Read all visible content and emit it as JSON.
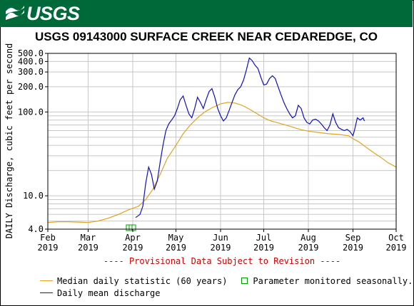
{
  "header": {
    "logo_text": "USGS",
    "logo_icon": "usgs-wave-logo",
    "brand_color": "#00693a"
  },
  "chart_data": {
    "type": "line",
    "title": "USGS 09143000 SURFACE CREEK NEAR CEDAREDGE, CO",
    "ylabel": "DAILY Discharge, cubic feet per second",
    "xlabel": "",
    "y_scale": "log",
    "ylim": [
      4.0,
      500.0
    ],
    "y_ticks": [
      {
        "value": 4.0,
        "label": "4.0"
      },
      {
        "value": 10.0,
        "label": "10.0"
      },
      {
        "value": 100.0,
        "label": "100.0"
      },
      {
        "value": 200.0,
        "label": "200.0"
      },
      {
        "value": 300.0,
        "label": "300.0"
      },
      {
        "value": 400.0,
        "label": "400.0"
      },
      {
        "value": 500.0,
        "label": "500.0"
      }
    ],
    "x_range": [
      "2019-02-01",
      "2019-10-01"
    ],
    "x_ticks": [
      {
        "date": "2019-02-01",
        "label": "Feb",
        "year": "2019"
      },
      {
        "date": "2019-03-01",
        "label": "Mar",
        "year": "2019"
      },
      {
        "date": "2019-04-01",
        "label": "Apr",
        "year": "2019"
      },
      {
        "date": "2019-05-01",
        "label": "May",
        "year": "2019"
      },
      {
        "date": "2019-06-01",
        "label": "Jun",
        "year": "2019"
      },
      {
        "date": "2019-07-01",
        "label": "Jul",
        "year": "2019"
      },
      {
        "date": "2019-08-01",
        "label": "Aug",
        "year": "2019"
      },
      {
        "date": "2019-09-01",
        "label": "Sep",
        "year": "2019"
      },
      {
        "date": "2019-10-01",
        "label": "Oct",
        "year": "2019"
      }
    ],
    "grid": true,
    "annotation": "---- Provisional Data Subject to Revision ----",
    "annotation_color": "#cc0000",
    "seasonal_markers": {
      "dates": [
        "2019-03-29",
        "2019-03-31",
        "2019-04-02"
      ],
      "value": 4.0,
      "color": "#00a000"
    },
    "series": [
      {
        "name": "Median daily statistic (60 years)",
        "color": "#e0a420",
        "points": [
          [
            "2019-02-01",
            4.8
          ],
          [
            "2019-02-08",
            4.9
          ],
          [
            "2019-02-15",
            4.9
          ],
          [
            "2019-02-22",
            4.85
          ],
          [
            "2019-03-01",
            4.8
          ],
          [
            "2019-03-08",
            5.0
          ],
          [
            "2019-03-15",
            5.4
          ],
          [
            "2019-03-22",
            6.0
          ],
          [
            "2019-03-29",
            6.8
          ],
          [
            "2019-04-05",
            7.5
          ],
          [
            "2019-04-10",
            9.0
          ],
          [
            "2019-04-15",
            12.0
          ],
          [
            "2019-04-20",
            18.0
          ],
          [
            "2019-04-25",
            28.0
          ],
          [
            "2019-05-01",
            40.0
          ],
          [
            "2019-05-06",
            55.0
          ],
          [
            "2019-05-11",
            70.0
          ],
          [
            "2019-05-16",
            85.0
          ],
          [
            "2019-05-21",
            100.0
          ],
          [
            "2019-05-26",
            112.0
          ],
          [
            "2019-06-01",
            125.0
          ],
          [
            "2019-06-06",
            130.0
          ],
          [
            "2019-06-11",
            128.0
          ],
          [
            "2019-06-16",
            120.0
          ],
          [
            "2019-06-21",
            108.0
          ],
          [
            "2019-06-26",
            96.0
          ],
          [
            "2019-07-01",
            85.0
          ],
          [
            "2019-07-06",
            78.0
          ],
          [
            "2019-07-11",
            74.0
          ],
          [
            "2019-07-16",
            70.0
          ],
          [
            "2019-07-21",
            66.0
          ],
          [
            "2019-07-26",
            62.0
          ],
          [
            "2019-08-01",
            59.0
          ],
          [
            "2019-08-08",
            57.0
          ],
          [
            "2019-08-15",
            55.0
          ],
          [
            "2019-08-22",
            54.0
          ],
          [
            "2019-08-29",
            52.0
          ],
          [
            "2019-09-01",
            48.0
          ],
          [
            "2019-09-05",
            44.0
          ],
          [
            "2019-09-10",
            38.0
          ],
          [
            "2019-09-15",
            33.0
          ],
          [
            "2019-09-20",
            29.0
          ],
          [
            "2019-09-25",
            25.0
          ],
          [
            "2019-10-01",
            22.0
          ]
        ]
      },
      {
        "name": "Daily mean discharge",
        "color": "#1010c0",
        "points": [
          [
            "2019-04-03",
            5.5
          ],
          [
            "2019-04-06",
            6.0
          ],
          [
            "2019-04-08",
            7.5
          ],
          [
            "2019-04-10",
            14.0
          ],
          [
            "2019-04-12",
            22.0
          ],
          [
            "2019-04-14",
            18.0
          ],
          [
            "2019-04-16",
            12.0
          ],
          [
            "2019-04-18",
            15.0
          ],
          [
            "2019-04-20",
            25.0
          ],
          [
            "2019-04-22",
            40.0
          ],
          [
            "2019-04-24",
            60.0
          ],
          [
            "2019-04-26",
            72.0
          ],
          [
            "2019-04-28",
            80.0
          ],
          [
            "2019-04-30",
            90.0
          ],
          [
            "2019-05-02",
            110.0
          ],
          [
            "2019-05-04",
            140.0
          ],
          [
            "2019-05-06",
            155.0
          ],
          [
            "2019-05-08",
            120.0
          ],
          [
            "2019-05-10",
            95.0
          ],
          [
            "2019-05-12",
            85.0
          ],
          [
            "2019-05-14",
            110.0
          ],
          [
            "2019-05-16",
            150.0
          ],
          [
            "2019-05-18",
            130.0
          ],
          [
            "2019-05-20",
            110.0
          ],
          [
            "2019-05-22",
            140.0
          ],
          [
            "2019-05-24",
            175.0
          ],
          [
            "2019-05-26",
            190.0
          ],
          [
            "2019-05-28",
            150.0
          ],
          [
            "2019-05-30",
            110.0
          ],
          [
            "2019-06-01",
            90.0
          ],
          [
            "2019-06-03",
            78.0
          ],
          [
            "2019-06-05",
            85.0
          ],
          [
            "2019-06-07",
            105.0
          ],
          [
            "2019-06-09",
            130.0
          ],
          [
            "2019-06-11",
            160.0
          ],
          [
            "2019-06-13",
            185.0
          ],
          [
            "2019-06-15",
            200.0
          ],
          [
            "2019-06-17",
            240.0
          ],
          [
            "2019-06-19",
            320.0
          ],
          [
            "2019-06-21",
            440.0
          ],
          [
            "2019-06-23",
            410.0
          ],
          [
            "2019-06-25",
            360.0
          ],
          [
            "2019-06-27",
            330.0
          ],
          [
            "2019-06-29",
            260.0
          ],
          [
            "2019-07-01",
            210.0
          ],
          [
            "2019-07-03",
            215.0
          ],
          [
            "2019-07-05",
            250.0
          ],
          [
            "2019-07-07",
            270.0
          ],
          [
            "2019-07-09",
            250.0
          ],
          [
            "2019-07-11",
            200.0
          ],
          [
            "2019-07-13",
            160.0
          ],
          [
            "2019-07-15",
            130.0
          ],
          [
            "2019-07-17",
            110.0
          ],
          [
            "2019-07-19",
            95.0
          ],
          [
            "2019-07-21",
            85.0
          ],
          [
            "2019-07-23",
            90.0
          ],
          [
            "2019-07-25",
            120.0
          ],
          [
            "2019-07-27",
            110.0
          ],
          [
            "2019-07-29",
            85.0
          ],
          [
            "2019-07-31",
            75.0
          ],
          [
            "2019-08-02",
            72.0
          ],
          [
            "2019-08-04",
            80.0
          ],
          [
            "2019-08-06",
            82.0
          ],
          [
            "2019-08-08",
            78.0
          ],
          [
            "2019-08-10",
            72.0
          ],
          [
            "2019-08-12",
            65.0
          ],
          [
            "2019-08-14",
            60.0
          ],
          [
            "2019-08-16",
            70.0
          ],
          [
            "2019-08-18",
            95.0
          ],
          [
            "2019-08-20",
            75.0
          ],
          [
            "2019-08-22",
            65.0
          ],
          [
            "2019-08-24",
            62.0
          ],
          [
            "2019-08-26",
            60.0
          ],
          [
            "2019-08-28",
            62.0
          ],
          [
            "2019-08-30",
            58.0
          ],
          [
            "2019-09-01",
            52.0
          ],
          [
            "2019-09-02",
            60.0
          ],
          [
            "2019-09-04",
            85.0
          ],
          [
            "2019-09-06",
            80.0
          ],
          [
            "2019-09-08",
            85.0
          ],
          [
            "2019-09-09",
            78.0
          ]
        ]
      }
    ]
  },
  "legend": {
    "median_label": "Median daily statistic (60 years)",
    "seasonal_label": "Parameter monitored seasonally.",
    "mean_label": "Daily mean discharge"
  }
}
